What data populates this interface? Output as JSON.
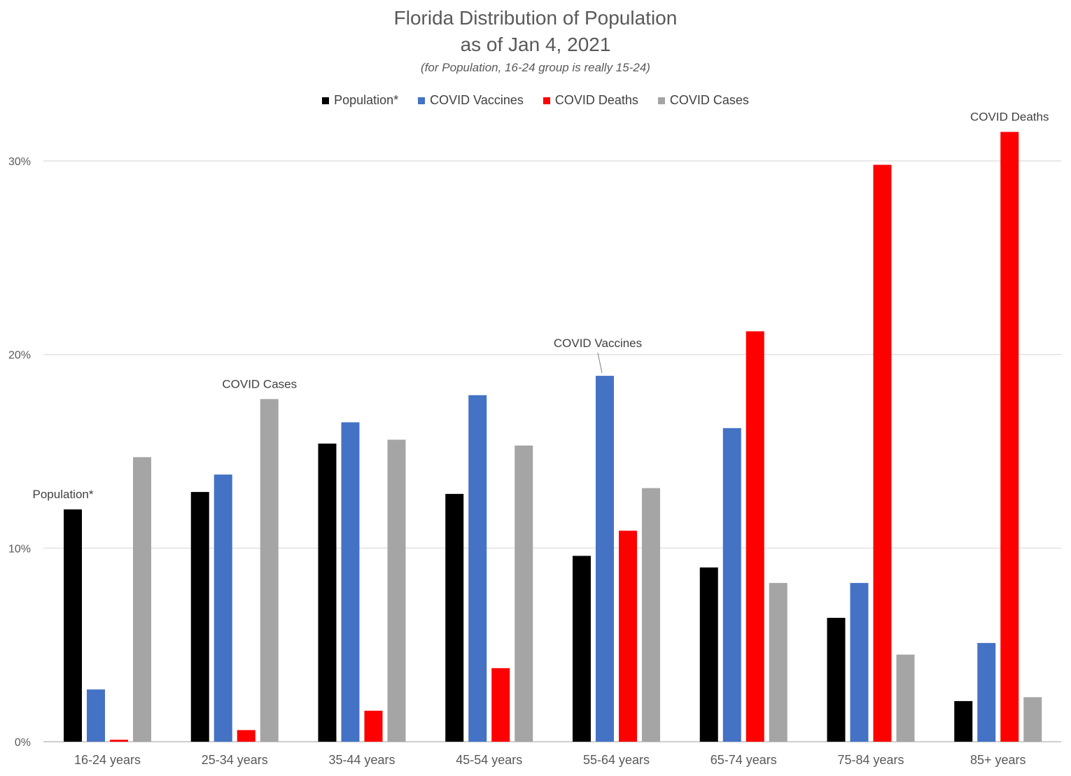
{
  "chart_data": {
    "type": "bar",
    "title_lines": [
      "Florida Distribution of Population",
      "as of Jan 4, 2021"
    ],
    "subtitle": "(for Population, 16-24 group is really 15-24)",
    "categories": [
      "16-24 years",
      "25-34 years",
      "35-44 years",
      "45-54 years",
      "55-64 years",
      "65-74 years",
      "75-84 years",
      "85+ years"
    ],
    "series": [
      {
        "name": "Population*",
        "color": "#000000",
        "values": [
          12.0,
          12.9,
          15.4,
          12.8,
          9.6,
          9.0,
          6.4,
          2.1
        ]
      },
      {
        "name": "COVID Vaccines",
        "color": "#4472C4",
        "values": [
          2.7,
          13.8,
          16.5,
          17.9,
          18.9,
          16.2,
          8.2,
          5.1
        ]
      },
      {
        "name": "COVID Deaths",
        "color": "#FF0000",
        "values": [
          0.1,
          0.6,
          1.6,
          3.8,
          10.9,
          21.2,
          29.8,
          31.5
        ]
      },
      {
        "name": "COVID Cases",
        "color": "#A5A5A5",
        "values": [
          14.7,
          17.7,
          15.6,
          15.3,
          13.1,
          8.2,
          4.5,
          2.3
        ]
      }
    ],
    "y_ticks": [
      "0%",
      "10%",
      "20%",
      "30%"
    ],
    "ylim": [
      0,
      30
    ],
    "annotations": [
      {
        "text": "Population*",
        "category": "16-24 years",
        "series": "Population*"
      },
      {
        "text": "COVID Cases",
        "category": "25-34 years",
        "series": "COVID Cases"
      },
      {
        "text": "COVID Vaccines",
        "category": "55-64 years",
        "series": "COVID Vaccines"
      },
      {
        "text": "COVID Deaths",
        "category": "85+ years",
        "series": "COVID Deaths"
      }
    ],
    "grid": true,
    "legend_position": "top-center"
  }
}
